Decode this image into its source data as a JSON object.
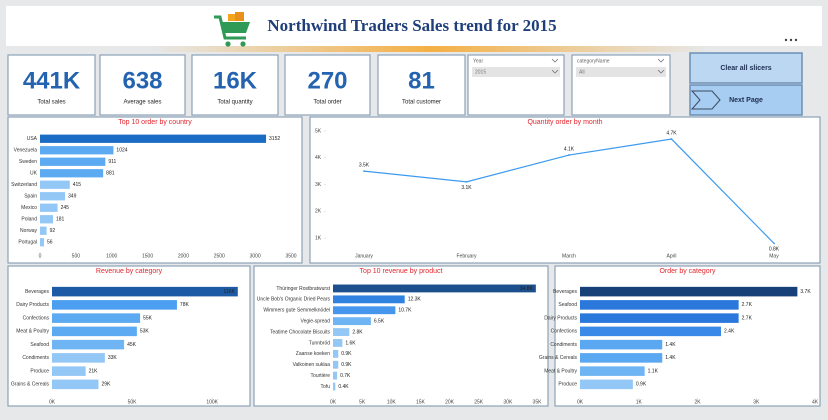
{
  "header": {
    "title": "Northwind Traders Sales trend for 2015"
  },
  "kpis": [
    {
      "value": "441K",
      "label": "Total sales"
    },
    {
      "value": "638",
      "label": "Average sales"
    },
    {
      "value": "16K",
      "label": "Total quantity"
    },
    {
      "value": "270",
      "label": "Total order"
    },
    {
      "value": "81",
      "label": "Total customer"
    }
  ],
  "slicers": [
    {
      "label": "Year",
      "value": "2015"
    },
    {
      "label": "categoryName",
      "value": "All"
    }
  ],
  "buttons": [
    "Clear all slicers",
    "Next Page"
  ],
  "chart_data": [
    {
      "type": "bar",
      "orientation": "horizontal",
      "title": "Top 10 order by country",
      "categories": [
        "USA",
        "Venezuela",
        "Sweden",
        "UK",
        "Switzerland",
        "Spain",
        "Mexico",
        "Poland",
        "Norway",
        "Portugal"
      ],
      "values": [
        3152,
        1024,
        911,
        881,
        415,
        349,
        245,
        181,
        92,
        56
      ],
      "colors": [
        "#1a6cc4",
        "#5caaf2",
        "#5caaf2",
        "#5caaf2",
        "#93c7f6",
        "#93c7f6",
        "#93c7f6",
        "#93c7f6",
        "#93c7f6",
        "#93c7f6"
      ],
      "xlim": [
        0,
        3500
      ],
      "xticks": [
        0,
        500,
        1000,
        1500,
        2000,
        2500,
        3000,
        3500
      ]
    },
    {
      "type": "line",
      "title": "Quantity order by month",
      "categories": [
        "January",
        "February",
        "March",
        "April",
        "May"
      ],
      "values": [
        3500,
        3100,
        4100,
        4700,
        800
      ],
      "value_labels": [
        "3.5K",
        "3.1K",
        "4.1K",
        "4.7K",
        "0.8K"
      ],
      "color": "#3a9af0",
      "ylim": [
        500,
        5200
      ],
      "yticks": [
        {
          "value": 1000,
          "label": "1K"
        },
        {
          "value": 2000,
          "label": "2K"
        },
        {
          "value": 3000,
          "label": "3K"
        },
        {
          "value": 4000,
          "label": "4K"
        },
        {
          "value": 5000,
          "label": "5K"
        }
      ]
    },
    {
      "type": "bar",
      "orientation": "horizontal",
      "title": "Revenue by category",
      "categories": [
        "Beverages",
        "Dairy Products",
        "Confections",
        "Meat & Poultry",
        "Seafood",
        "Condiments",
        "Produce",
        "Grains & Cereals"
      ],
      "values": [
        116000,
        78000,
        55000,
        53000,
        45000,
        33000,
        21000,
        29000
      ],
      "value_labels": [
        "116K",
        "78K",
        "55K",
        "53K",
        "45K",
        "33K",
        "21K",
        "29K"
      ],
      "colors": [
        "#1c5aa6",
        "#4b9ef0",
        "#5caaf2",
        "#5caaf2",
        "#6fb4f3",
        "#93c7f6",
        "#93c7f6",
        "#93c7f6"
      ],
      "xlim": [
        0,
        118000
      ],
      "xticks": [
        {
          "value": 0,
          "label": "0K"
        },
        {
          "value": 50000,
          "label": "50K"
        },
        {
          "value": 100000,
          "label": "100K"
        }
      ]
    },
    {
      "type": "bar",
      "orientation": "horizontal",
      "title": "Top 10 revenue by product",
      "categories": [
        "Thüringer Rostbratwurst",
        "Uncle Bob's Organic Dried Pears",
        "Wimmers gute Semmelknödel",
        "Vegie-spread",
        "Teatime Chocolate Biscuits",
        "Tunnbröd",
        "Zaanse koeken",
        "Valkoinen suklaa",
        "Tourtière",
        "Tofu"
      ],
      "values": [
        34800,
        12300,
        10700,
        6500,
        2800,
        1600,
        900,
        900,
        700,
        400
      ],
      "value_labels": [
        "34.8K",
        "12.3K",
        "10.7K",
        "6.5K",
        "2.8K",
        "1.6K",
        "0.9K",
        "0.9K",
        "0.7K",
        "0.4K"
      ],
      "colors": [
        "#1b4f8e",
        "#2f82e0",
        "#4596ec",
        "#6fb4f3",
        "#93c7f6",
        "#93c7f6",
        "#93c7f6",
        "#93c7f6",
        "#93c7f6",
        "#93c7f6"
      ],
      "xlim": [
        0,
        35000
      ],
      "xticks": [
        {
          "value": 0,
          "label": "0K"
        },
        {
          "value": 5000,
          "label": "5K"
        },
        {
          "value": 10000,
          "label": "10K"
        },
        {
          "value": 15000,
          "label": "15K"
        },
        {
          "value": 20000,
          "label": "20K"
        },
        {
          "value": 25000,
          "label": "25K"
        },
        {
          "value": 30000,
          "label": "30K"
        },
        {
          "value": 35000,
          "label": "35K"
        }
      ]
    },
    {
      "type": "bar",
      "orientation": "horizontal",
      "title": "Order by category",
      "categories": [
        "Beverages",
        "Seafood",
        "Dairy Products",
        "Confections",
        "Condiments",
        "Grains & Cereals",
        "Meat & Poultry",
        "Produce"
      ],
      "values": [
        3700,
        2700,
        2700,
        2400,
        1400,
        1400,
        1100,
        900
      ],
      "value_labels": [
        "3.7K",
        "2.7K",
        "2.7K",
        "2.4K",
        "1.4K",
        "1.4K",
        "1.1K",
        "0.9K"
      ],
      "colors": [
        "#173f78",
        "#2a78dc",
        "#2a78dc",
        "#3a88e8",
        "#5aa7f2",
        "#5aa7f2",
        "#6fb4f3",
        "#93c7f6"
      ],
      "xlim": [
        0,
        4000
      ],
      "xticks": [
        {
          "value": 0,
          "label": "0K"
        },
        {
          "value": 1000,
          "label": "1K"
        },
        {
          "value": 2000,
          "label": "2K"
        },
        {
          "value": 3000,
          "label": "3K"
        },
        {
          "value": 4000,
          "label": "4K"
        }
      ]
    }
  ]
}
